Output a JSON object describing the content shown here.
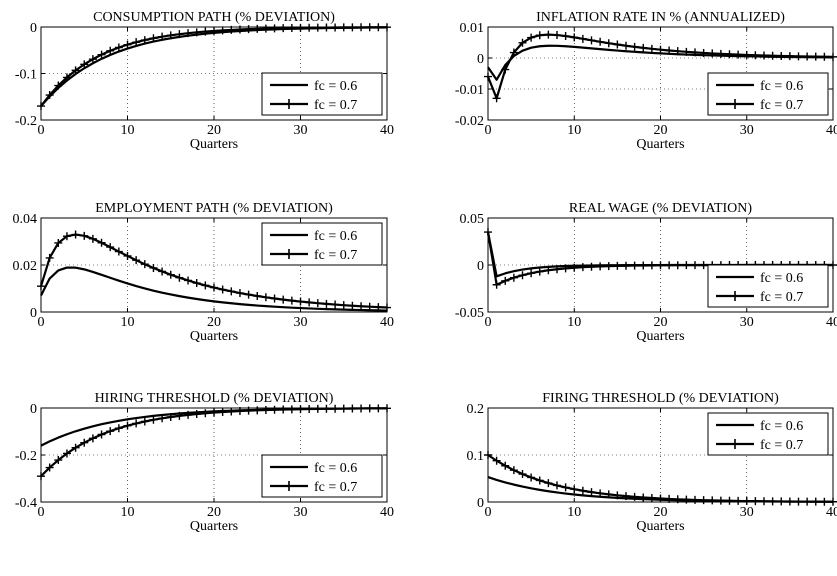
{
  "figure": {
    "legend_labels": [
      "fc = 0.6",
      "fc = 0.7"
    ]
  },
  "chart_data": [
    {
      "type": "line",
      "title": "CONSUMPTION PATH (% DEVIATION)",
      "xlabel": "Quarters",
      "ylabel": "",
      "xlim": [
        0,
        40
      ],
      "ylim": [
        -0.2,
        0
      ],
      "xticks": [
        0,
        10,
        20,
        30,
        40
      ],
      "xtick_labels": [
        "0",
        "10",
        "20",
        "30",
        "40"
      ],
      "yticks": [
        -0.2,
        -0.1,
        0
      ],
      "ytick_labels": [
        "-0.2",
        "-0.1",
        "0"
      ],
      "grid": true,
      "legend": "bottom-right",
      "x": "0..40",
      "series": [
        {
          "name": "fc = 0.6",
          "marker": "none",
          "formula": {
            "kind": "exp",
            "a": -0.17,
            "k": 0.13
          }
        },
        {
          "name": "fc = 0.7",
          "marker": "plus",
          "formula": {
            "kind": "exp",
            "a": -0.17,
            "k": 0.15
          }
        }
      ]
    },
    {
      "type": "line",
      "title": "INFLATION RATE IN % (ANNUALIZED)",
      "xlabel": "Quarters",
      "ylabel": "",
      "xlim": [
        0,
        40
      ],
      "ylim": [
        -0.02,
        0.01
      ],
      "xticks": [
        0,
        10,
        20,
        30,
        40
      ],
      "xtick_labels": [
        "0",
        "10",
        "20",
        "30",
        "40"
      ],
      "yticks": [
        -0.02,
        -0.01,
        0,
        0.01
      ],
      "ytick_labels": [
        "-0.02",
        "-0.01",
        "0",
        "0.01"
      ],
      "grid": true,
      "legend": "bottom-right",
      "x": "0..40",
      "series": [
        {
          "name": "fc = 0.6",
          "marker": "none",
          "formula": {
            "kind": "dip",
            "y0": -0.003,
            "d": -0.007,
            "k1": 0.35,
            "b": 0.01,
            "k2": 0.1
          }
        },
        {
          "name": "fc = 0.7",
          "marker": "plus",
          "formula": {
            "kind": "dip",
            "y0": -0.006,
            "d": -0.013,
            "k1": 0.38,
            "b": 0.018,
            "k2": 0.1
          }
        }
      ]
    },
    {
      "type": "line",
      "title": "EMPLOYMENT PATH (% DEVIATION)",
      "xlabel": "Quarters",
      "ylabel": "",
      "xlim": [
        0,
        40
      ],
      "ylim": [
        0,
        0.04
      ],
      "xticks": [
        0,
        10,
        20,
        30,
        40
      ],
      "xtick_labels": [
        "0",
        "10",
        "20",
        "30",
        "40"
      ],
      "yticks": [
        0,
        0.02,
        0.04
      ],
      "ytick_labels": [
        "0",
        "0.02",
        "0.04"
      ],
      "grid": true,
      "legend": "top-right",
      "x": "0..40",
      "series": [
        {
          "name": "fc = 0.6",
          "marker": "none",
          "formula": {
            "kind": "hump",
            "a": 0.0265,
            "k1": 0.1,
            "k2": 0.5,
            "y0": 0.007
          }
        },
        {
          "name": "fc = 0.7",
          "marker": "plus",
          "formula": {
            "kind": "hump",
            "a": 0.046,
            "k1": 0.085,
            "k2": 0.45,
            "y0": 0.011
          }
        }
      ]
    },
    {
      "type": "line",
      "title": "REAL WAGE (% DEVIATION)",
      "xlabel": "Quarters",
      "ylabel": "",
      "xlim": [
        0,
        40
      ],
      "ylim": [
        -0.05,
        0.05
      ],
      "xticks": [
        0,
        10,
        20,
        30,
        40
      ],
      "xtick_labels": [
        "0",
        "10",
        "20",
        "30",
        "40"
      ],
      "yticks": [
        -0.05,
        0,
        0.05
      ],
      "ytick_labels": [
        "-0.05",
        "0",
        "0.05"
      ],
      "grid": true,
      "legend": "bottom-right",
      "x": "0..40",
      "series": [
        {
          "name": "fc = 0.6",
          "marker": "none",
          "formula": {
            "kind": "jump",
            "y0": 0.035,
            "a": -0.012,
            "k": 0.3
          }
        },
        {
          "name": "fc = 0.7",
          "marker": "plus",
          "formula": {
            "kind": "jump",
            "y0": 0.035,
            "a": -0.021,
            "k": 0.22
          }
        }
      ]
    },
    {
      "type": "line",
      "title": "HIRING THRESHOLD (% DEVIATION)",
      "xlabel": "Quarters",
      "ylabel": "",
      "xlim": [
        0,
        40
      ],
      "ylim": [
        -0.4,
        0
      ],
      "xticks": [
        0,
        10,
        20,
        30,
        40
      ],
      "xtick_labels": [
        "0",
        "10",
        "20",
        "30",
        "40"
      ],
      "yticks": [
        -0.4,
        -0.2,
        0
      ],
      "ytick_labels": [
        "-0.4",
        "-0.2",
        "0"
      ],
      "grid": true,
      "legend": "bottom-right",
      "x": "0..40",
      "series": [
        {
          "name": "fc = 0.6",
          "marker": "none",
          "formula": {
            "kind": "exp",
            "a": -0.16,
            "k": 0.12
          }
        },
        {
          "name": "fc = 0.7",
          "marker": "plus",
          "formula": {
            "kind": "exp",
            "a": -0.29,
            "k": 0.135
          }
        }
      ]
    },
    {
      "type": "line",
      "title": "FIRING THRESHOLD (% DEVIATION)",
      "xlabel": "Quarters",
      "ylabel": "",
      "xlim": [
        0,
        40
      ],
      "ylim": [
        0,
        0.2
      ],
      "xticks": [
        0,
        10,
        20,
        30,
        40
      ],
      "xtick_labels": [
        "0",
        "10",
        "20",
        "30",
        "40"
      ],
      "yticks": [
        0,
        0.1,
        0.2
      ],
      "ytick_labels": [
        "0",
        "0.1",
        "0.2"
      ],
      "grid": true,
      "legend": "top-right",
      "x": "0..40",
      "series": [
        {
          "name": "fc = 0.6",
          "marker": "none",
          "formula": {
            "kind": "exp",
            "a": 0.053,
            "k": 0.12
          }
        },
        {
          "name": "fc = 0.7",
          "marker": "plus",
          "formula": {
            "kind": "exp",
            "a": 0.1,
            "k": 0.13
          }
        }
      ]
    }
  ]
}
